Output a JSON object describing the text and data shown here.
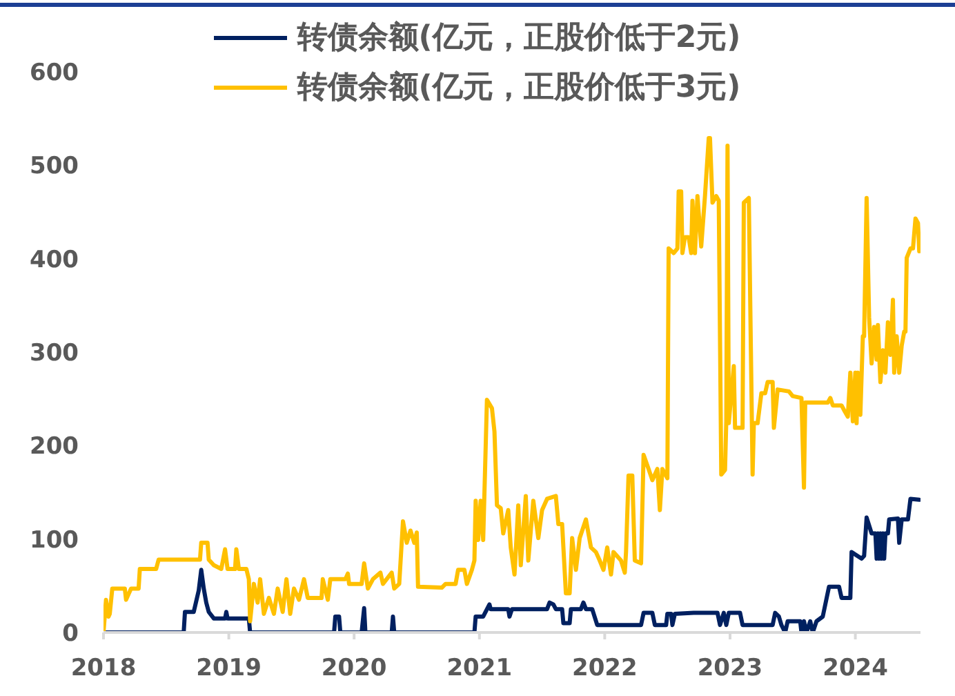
{
  "chart_data": {
    "type": "line",
    "series": [
      {
        "name": "转债余额(亿元，正股价低于2元)",
        "color": "#002060",
        "x": [
          2018.0,
          2018.64,
          2018.65,
          2018.72,
          2018.76,
          2018.78,
          2018.8,
          2018.82,
          2018.84,
          2018.88,
          2018.97,
          2018.98,
          2018.99,
          2019.16,
          2019.17,
          2019.84,
          2019.85,
          2019.88,
          2019.89,
          2020.06,
          2020.08,
          2020.09,
          2020.3,
          2020.31,
          2020.32,
          2020.96,
          2020.97,
          2021.03,
          2021.08,
          2021.09,
          2021.23,
          2021.24,
          2021.26,
          2021.54,
          2021.56,
          2021.59,
          2021.61,
          2021.66,
          2021.67,
          2021.72,
          2021.73,
          2021.81,
          2021.83,
          2021.85,
          2021.9,
          2021.94,
          2022.29,
          2022.31,
          2022.38,
          2022.4,
          2022.49,
          2022.5,
          2022.53,
          2022.54,
          2022.56,
          2022.71,
          2022.9,
          2022.92,
          2022.95,
          2022.97,
          2022.99,
          2023.08,
          2023.1,
          2023.34,
          2023.36,
          2023.39,
          2023.41,
          2023.44,
          2023.46,
          2023.56,
          2023.57,
          2023.59,
          2023.61,
          2023.64,
          2023.66,
          2023.69,
          2023.74,
          2023.79,
          2023.87,
          2023.89,
          2023.96,
          2023.97,
          2024.05,
          2024.07,
          2024.09,
          2024.13,
          2024.16,
          2024.17,
          2024.18,
          2024.19,
          2024.2,
          2024.21,
          2024.22,
          2024.23,
          2024.24,
          2024.26,
          2024.27,
          2024.34,
          2024.35,
          2024.37,
          2024.42,
          2024.44,
          2024.51
        ],
        "values": [
          0,
          0,
          22,
          22,
          45,
          67,
          47,
          32,
          22,
          15,
          15,
          22,
          15,
          15,
          0,
          0,
          17,
          17,
          0,
          0,
          26,
          0,
          0,
          17,
          0,
          0,
          17,
          17,
          30,
          25,
          25,
          17,
          25,
          25,
          32,
          30,
          25,
          25,
          10,
          10,
          25,
          25,
          32,
          25,
          25,
          8,
          8,
          21,
          21,
          8,
          8,
          20,
          20,
          8,
          20,
          21,
          21,
          8,
          21,
          8,
          21,
          21,
          8,
          8,
          21,
          17,
          8,
          0,
          12,
          12,
          0,
          12,
          0,
          12,
          0,
          12,
          17,
          49,
          49,
          37,
          37,
          86,
          79,
          82,
          123,
          106,
          106,
          79,
          106,
          79,
          106,
          79,
          106,
          79,
          106,
          106,
          121,
          122,
          96,
          121,
          121,
          143,
          142
        ]
      },
      {
        "name": "转债余额(亿元，正股价低于3元)",
        "color": "#ffc000",
        "x": [
          2018.0,
          2018.02,
          2018.04,
          2018.05,
          2018.07,
          2018.17,
          2018.18,
          2018.22,
          2018.28,
          2018.29,
          2018.42,
          2018.44,
          2018.77,
          2018.78,
          2018.83,
          2018.84,
          2018.88,
          2018.94,
          2018.97,
          2018.99,
          2019.05,
          2019.06,
          2019.08,
          2019.14,
          2019.16,
          2019.17,
          2019.2,
          2019.23,
          2019.25,
          2019.28,
          2019.32,
          2019.36,
          2019.39,
          2019.43,
          2019.46,
          2019.49,
          2019.52,
          2019.56,
          2019.6,
          2019.63,
          2019.74,
          2019.75,
          2019.79,
          2019.81,
          2019.93,
          2019.95,
          2019.96,
          2020.06,
          2020.08,
          2020.11,
          2020.15,
          2020.21,
          2020.23,
          2020.3,
          2020.32,
          2020.36,
          2020.39,
          2020.42,
          2020.45,
          2020.48,
          2020.5,
          2020.51,
          2020.7,
          2020.73,
          2020.81,
          2020.83,
          2020.88,
          2020.9,
          2020.94,
          2020.96,
          2020.97,
          2020.99,
          2021.01,
          2021.03,
          2021.06,
          2021.1,
          2021.12,
          2021.14,
          2021.17,
          2021.19,
          2021.23,
          2021.25,
          2021.28,
          2021.31,
          2021.33,
          2021.37,
          2021.39,
          2021.43,
          2021.47,
          2021.5,
          2021.54,
          2021.61,
          2021.63,
          2021.66,
          2021.69,
          2021.72,
          2021.74,
          2021.77,
          2021.8,
          2021.85,
          2021.89,
          2021.93,
          2021.96,
          2021.99,
          2022.02,
          2022.05,
          2022.07,
          2022.13,
          2022.16,
          2022.17,
          2022.19,
          2022.22,
          2022.24,
          2022.29,
          2022.31,
          2022.35,
          2022.38,
          2022.42,
          2022.44,
          2022.46,
          2022.5,
          2022.51,
          2022.55,
          2022.58,
          2022.59,
          2022.61,
          2022.62,
          2022.64,
          2022.67,
          2022.69,
          2022.7,
          2022.72,
          2022.74,
          2022.77,
          2022.8,
          2022.83,
          2022.84,
          2022.86,
          2022.89,
          2022.91,
          2022.93,
          2022.96,
          2022.97,
          2022.98,
          2022.99,
          2023.03,
          2023.04,
          2023.1,
          2023.11,
          2023.15,
          2023.18,
          2023.19,
          2023.22,
          2023.25,
          2023.28,
          2023.3,
          2023.34,
          2023.35,
          2023.38,
          2023.47,
          2023.5,
          2023.57,
          2023.59,
          2023.6,
          2023.78,
          2023.8,
          2023.82,
          2023.89,
          2023.91,
          2023.94,
          2023.96,
          2023.98,
          2024.0,
          2024.01,
          2024.02,
          2024.04,
          2024.06,
          2024.07,
          2024.09,
          2024.11,
          2024.13,
          2024.15,
          2024.17,
          2024.18,
          2024.2,
          2024.22,
          2024.24,
          2024.26,
          2024.28,
          2024.3,
          2024.31,
          2024.33,
          2024.35,
          2024.37,
          2024.39,
          2024.4,
          2024.41,
          2024.44,
          2024.46,
          2024.48,
          2024.5,
          2024.51
        ],
        "values": [
          0,
          35,
          17,
          20,
          47,
          47,
          35,
          47,
          47,
          68,
          68,
          78,
          78,
          96,
          96,
          78,
          72,
          68,
          89,
          68,
          68,
          89,
          68,
          68,
          57,
          12,
          52,
          32,
          57,
          20,
          37,
          20,
          47,
          22,
          57,
          20,
          47,
          35,
          57,
          37,
          37,
          57,
          35,
          57,
          57,
          63,
          52,
          52,
          74,
          47,
          57,
          64,
          52,
          64,
          47,
          52,
          119,
          96,
          109,
          96,
          107,
          49,
          48,
          52,
          52,
          67,
          67,
          52,
          67,
          77,
          141,
          99,
          141,
          99,
          249,
          240,
          215,
          136,
          133,
          106,
          131,
          91,
          62,
          136,
          72,
          146,
          77,
          141,
          101,
          131,
          143,
          146,
          116,
          116,
          42,
          42,
          101,
          67,
          101,
          121,
          91,
          86,
          77,
          67,
          91,
          62,
          86,
          77,
          64,
          86,
          168,
          168,
          77,
          74,
          190,
          175,
          163,
          175,
          131,
          175,
          165,
          411,
          406,
          411,
          472,
          472,
          406,
          423,
          423,
          406,
          462,
          406,
          467,
          413,
          467,
          529,
          529,
          460,
          467,
          462,
          169,
          174,
          226,
          521,
          224,
          285,
          219,
          219,
          460,
          465,
          169,
          224,
          224,
          256,
          256,
          268,
          268,
          219,
          260,
          258,
          253,
          251,
          155,
          246,
          246,
          251,
          243,
          243,
          238,
          231,
          278,
          226,
          278,
          224,
          278,
          233,
          317,
          317,
          465,
          337,
          288,
          327,
          292,
          329,
          268,
          302,
          278,
          332,
          297,
          356,
          278,
          317,
          278,
          307,
          322,
          322,
          401,
          411,
          411,
          443,
          438,
          408
        ]
      }
    ],
    "xlim": [
      2018,
      2024.52
    ],
    "xticks": [
      2018,
      2019,
      2020,
      2021,
      2022,
      2023,
      2024
    ],
    "ylim": [
      0,
      600
    ],
    "yticks": [
      0,
      100,
      200,
      300,
      400,
      500,
      600
    ],
    "legend": "top",
    "marker": "none",
    "line_style": "solid"
  }
}
